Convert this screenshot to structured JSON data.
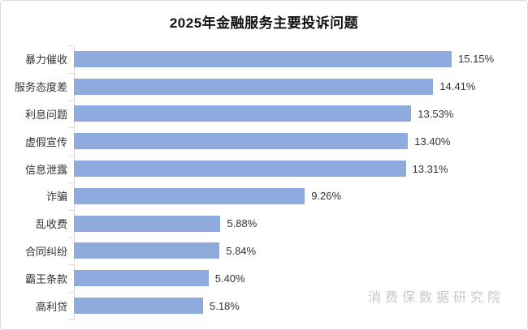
{
  "chart": {
    "title": "2025年金融服务主要投诉问题"
  },
  "watermark": "消费保数据研究院",
  "colors": {
    "bar": "#8FAADC",
    "axis": "#D9D9D9",
    "text": "#333333",
    "title": "#111111",
    "watermark": "#C8C8C8",
    "background": "#FFFFFF"
  },
  "chart_data": {
    "type": "bar",
    "orientation": "horizontal",
    "title": "2025年金融服务主要投诉问题",
    "categories": [
      "暴力催收",
      "服务态度差",
      "利息问题",
      "虚假宣传",
      "信息泄露",
      "诈骗",
      "乱收费",
      "合同纠纷",
      "霸王条款",
      "高利贷"
    ],
    "values": [
      15.15,
      14.41,
      13.53,
      13.4,
      13.31,
      9.26,
      5.88,
      5.84,
      5.4,
      5.18
    ],
    "labels": [
      "15.15%",
      "14.41%",
      "13.53%",
      "13.40%",
      "13.31%",
      "9.26%",
      "5.88%",
      "5.84%",
      "5.40%",
      "5.18%"
    ],
    "xlabel": "",
    "ylabel": "",
    "value_axis_visible": false,
    "grid": false,
    "legend": "none",
    "data_labels": "outside-end",
    "xlim": [
      0,
      16.5
    ]
  }
}
